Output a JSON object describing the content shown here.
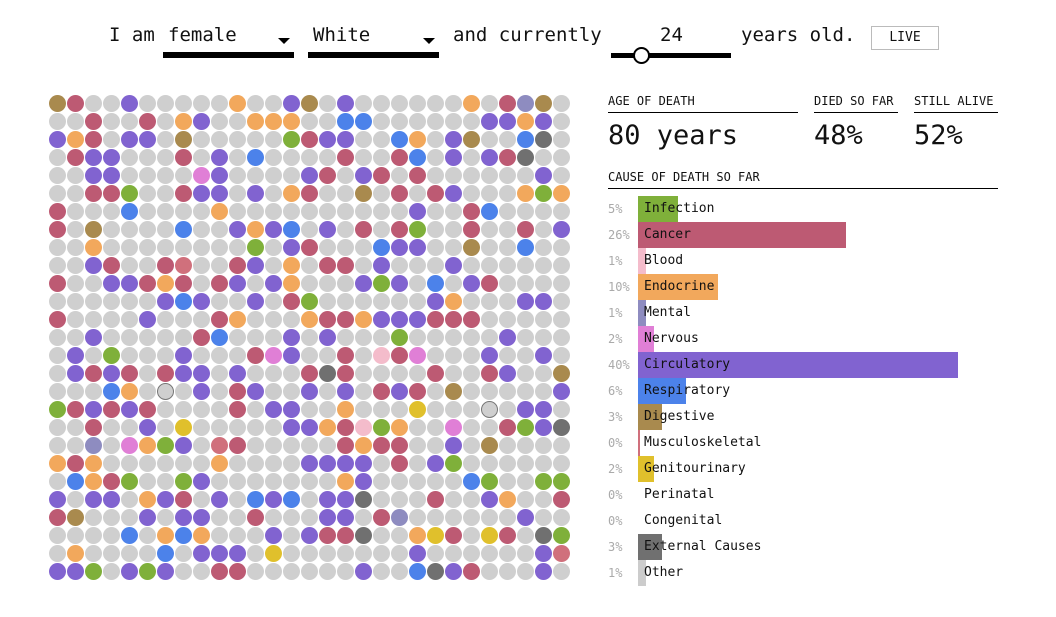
{
  "controls": {
    "prefix": "I am",
    "sex": "female",
    "race": "White",
    "middle": "and currently",
    "age": "24",
    "age_value": 24,
    "suffix": "years old.",
    "live_button": "LIVE"
  },
  "stats": {
    "age_of_death_label": "AGE OF DEATH",
    "age_of_death_value": "80 years",
    "died_label": "DIED SO FAR",
    "died_value": "48%",
    "alive_label": "STILL ALIVE",
    "alive_value": "52%"
  },
  "causes_title": "CAUSE OF DEATH SO FAR",
  "causes": [
    {
      "pct": "5%",
      "value": 5,
      "label": "Infection",
      "color": "#7fb03a"
    },
    {
      "pct": "26%",
      "value": 26,
      "label": "Cancer",
      "color": "#bd5a73"
    },
    {
      "pct": "1%",
      "value": 1,
      "label": "Blood",
      "color": "#f4bccb"
    },
    {
      "pct": "10%",
      "value": 10,
      "label": "Endocrine",
      "color": "#f2a85c"
    },
    {
      "pct": "1%",
      "value": 1,
      "label": "Mental",
      "color": "#8e8cc0"
    },
    {
      "pct": "2%",
      "value": 2,
      "label": "Nervous",
      "color": "#e07fd6"
    },
    {
      "pct": "40%",
      "value": 40,
      "label": "Circulatory",
      "color": "#8163d0"
    },
    {
      "pct": "6%",
      "value": 6,
      "label": "Respiratory",
      "color": "#4c82ea"
    },
    {
      "pct": "3%",
      "value": 3,
      "label": "Digestive",
      "color": "#a98a4e"
    },
    {
      "pct": "0%",
      "value": 0.3,
      "label": "Musculoskeletal",
      "color": "#d0707c"
    },
    {
      "pct": "2%",
      "value": 2,
      "label": "Genitourinary",
      "color": "#e0c02c"
    },
    {
      "pct": "0%",
      "value": 0,
      "label": "Perinatal",
      "color": "#cccccc"
    },
    {
      "pct": "0%",
      "value": 0,
      "label": "Congenital",
      "color": "#cccccc"
    },
    {
      "pct": "3%",
      "value": 3,
      "label": "External Causes",
      "color": "#707070"
    },
    {
      "pct": "1%",
      "value": 1,
      "label": "Other",
      "color": "#cccccc"
    }
  ],
  "alive_color": "#cfcfcf"
}
